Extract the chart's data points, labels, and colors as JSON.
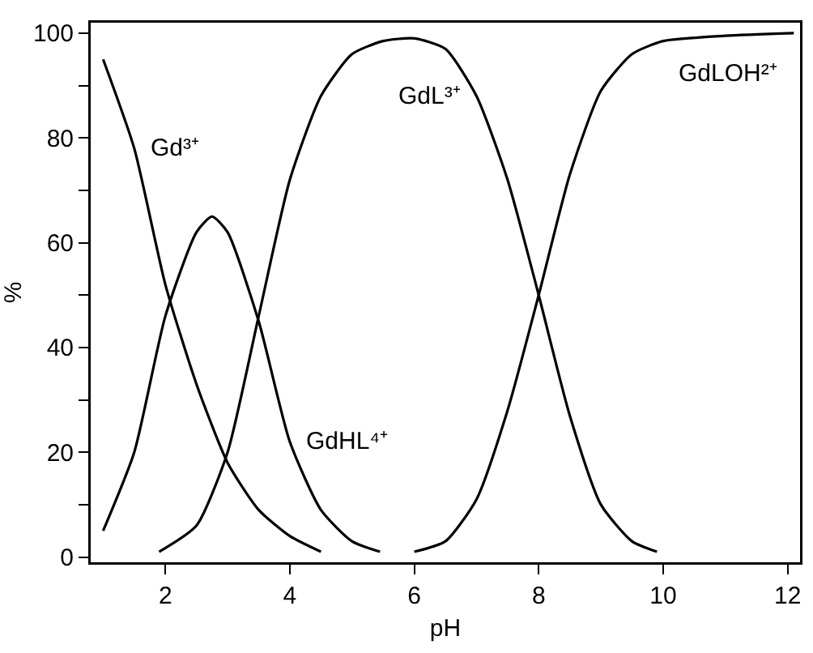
{
  "chart_data": {
    "type": "line",
    "xlabel": "pH",
    "ylabel": "%",
    "xlim": [
      0.8,
      12.2
    ],
    "ylim": [
      -1,
      102
    ],
    "xticks": [
      2,
      4,
      6,
      8,
      10,
      12
    ],
    "yticks": [
      0,
      {
        "value": 10,
        "label": null
      },
      20,
      {
        "value": 30,
        "label": null
      },
      40,
      {
        "value": 50,
        "label": null
      },
      60,
      {
        "value": 70,
        "label": null
      },
      80,
      {
        "value": 90,
        "label": null
      },
      100
    ],
    "grid": false,
    "marker": "none",
    "line_style": "solid",
    "series": [
      {
        "color": "#000000",
        "x": [
          1.0,
          1.5,
          2.0,
          2.5,
          3.0,
          3.5,
          4.0,
          4.5
        ],
        "values": [
          95,
          78,
          52,
          33,
          18,
          9,
          4,
          1
        ]
      },
      {
        "color": "#000000",
        "x": [
          1.0,
          1.5,
          2.0,
          2.5,
          2.75,
          3.0,
          3.5,
          4.0,
          4.5,
          5.0,
          5.45
        ],
        "values": [
          5,
          20,
          46,
          62,
          65,
          62,
          45,
          22,
          9,
          3,
          1
        ]
      },
      {
        "color": "#000000",
        "x": [
          1.9,
          2.5,
          3.0,
          3.5,
          4.0,
          4.5,
          5.0,
          5.5,
          6.0,
          6.5,
          7.0,
          7.5,
          8.0,
          8.5,
          9.0,
          9.5,
          9.9
        ],
        "values": [
          1,
          6,
          20,
          46,
          72,
          88,
          96,
          98.5,
          99,
          97,
          88,
          72,
          50,
          27,
          10,
          3,
          1
        ]
      },
      {
        "color": "#000000",
        "x": [
          6.0,
          6.5,
          7.0,
          7.5,
          8.0,
          8.5,
          9.0,
          9.5,
          10,
          11,
          12.1
        ],
        "values": [
          1,
          3,
          11,
          28,
          50,
          73,
          89,
          96,
          98.5,
          99.5,
          100
        ]
      }
    ],
    "annotations": [
      {
        "text": "Gd³⁺",
        "x": 1.5,
        "y": 78
      },
      {
        "text": "GdHL⁴⁺",
        "x": 4.0,
        "y": 22
      },
      {
        "text": "GdL³⁺",
        "x": 7.0,
        "y": 88
      },
      {
        "text": "GdLOH²⁺",
        "x": 10,
        "y": 98.5
      }
    ]
  }
}
